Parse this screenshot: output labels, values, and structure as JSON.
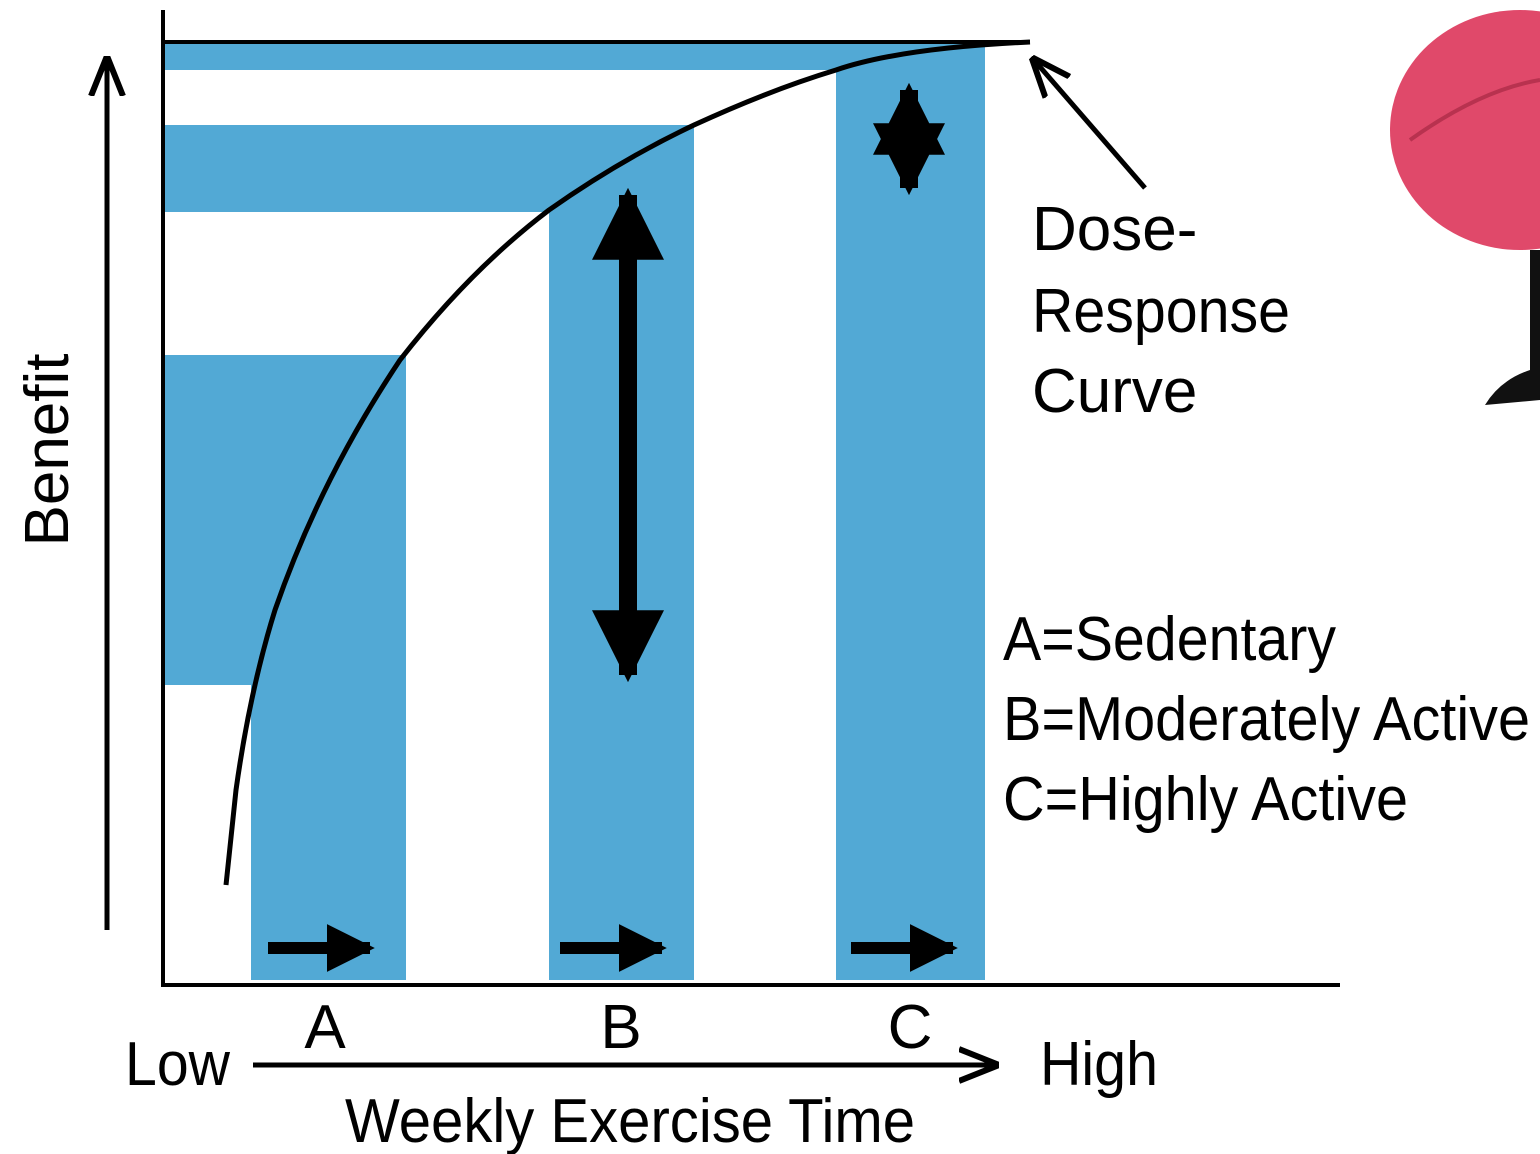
{
  "axes": {
    "y_label": "Benefit",
    "x_label": "Weekly Exercise Time",
    "x_low": "Low",
    "x_high": "High"
  },
  "groups": [
    "A",
    "B",
    "C"
  ],
  "curve_label": [
    "Dose-",
    "Response",
    "Curve"
  ],
  "legend": [
    "A=Sedentary",
    "B=Moderately Active",
    "C=Highly Active"
  ]
}
